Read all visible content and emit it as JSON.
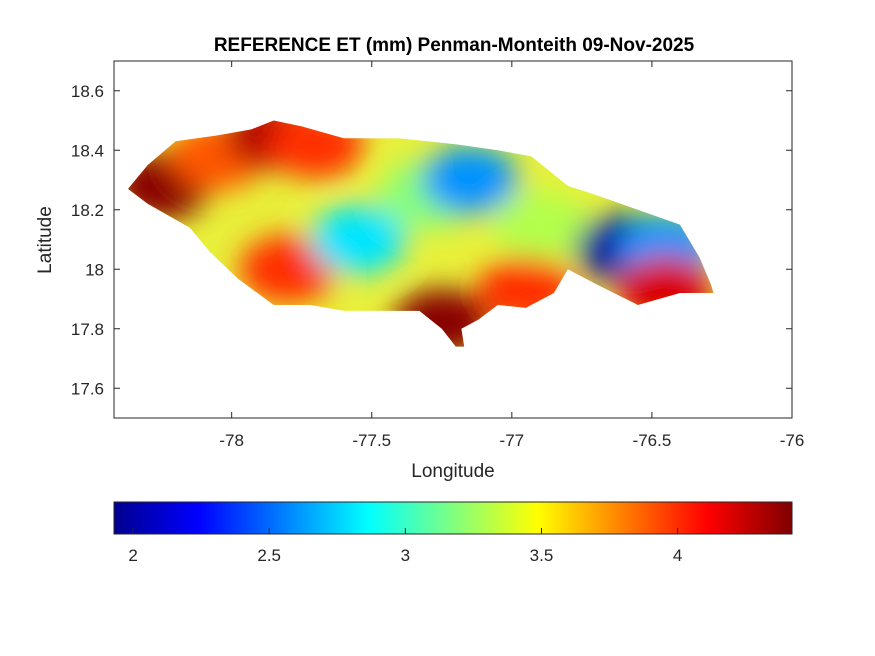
{
  "chart_data": {
    "type": "heatmap",
    "title": "REFERENCE ET (mm) Penman-Monteith 09-Nov-2025",
    "xlabel": "Longitude",
    "ylabel": "Latitude",
    "xlim": [
      -78.42,
      -76.0
    ],
    "ylim": [
      17.5,
      18.7
    ],
    "x_ticks": [
      -78,
      -77.5,
      -77,
      -76.5,
      -76
    ],
    "x_tick_labels": [
      "-78",
      "-77.5",
      "-77",
      "-76.5",
      "-76"
    ],
    "y_ticks": [
      17.6,
      17.8,
      18.0,
      18.2,
      18.4,
      18.6
    ],
    "y_tick_labels": [
      "17.6",
      "17.8",
      "18",
      "18.2",
      "18.4",
      "18.6"
    ],
    "grid": false,
    "colormap": "jet",
    "colorbar": {
      "orientation": "horizontal",
      "placement": "bottom",
      "range": [
        1.93,
        4.42
      ],
      "ticks": [
        2,
        2.5,
        3,
        3.5,
        4
      ],
      "tick_labels": [
        "2",
        "2.5",
        "3",
        "3.5",
        "4"
      ]
    },
    "region_outline": [
      [
        -78.37,
        18.27
      ],
      [
        -78.3,
        18.35
      ],
      [
        -78.2,
        18.43
      ],
      [
        -78.05,
        18.45
      ],
      [
        -77.93,
        18.47
      ],
      [
        -77.85,
        18.5
      ],
      [
        -77.75,
        18.48
      ],
      [
        -77.6,
        18.44
      ],
      [
        -77.4,
        18.44
      ],
      [
        -77.2,
        18.42
      ],
      [
        -77.05,
        18.4
      ],
      [
        -76.93,
        18.38
      ],
      [
        -76.8,
        18.28
      ],
      [
        -76.7,
        18.25
      ],
      [
        -76.55,
        18.2
      ],
      [
        -76.4,
        18.15
      ],
      [
        -76.33,
        18.04
      ],
      [
        -76.29,
        17.95
      ],
      [
        -76.28,
        17.92
      ],
      [
        -76.4,
        17.92
      ],
      [
        -76.55,
        17.88
      ],
      [
        -76.7,
        17.95
      ],
      [
        -76.8,
        18.0
      ],
      [
        -76.85,
        17.92
      ],
      [
        -76.95,
        17.87
      ],
      [
        -77.05,
        17.88
      ],
      [
        -77.12,
        17.83
      ],
      [
        -77.18,
        17.8
      ],
      [
        -77.17,
        17.74
      ],
      [
        -77.2,
        17.74
      ],
      [
        -77.25,
        17.8
      ],
      [
        -77.33,
        17.86
      ],
      [
        -77.45,
        17.86
      ],
      [
        -77.6,
        17.86
      ],
      [
        -77.72,
        17.88
      ],
      [
        -77.85,
        17.88
      ],
      [
        -77.98,
        17.97
      ],
      [
        -78.08,
        18.06
      ],
      [
        -78.15,
        18.14
      ],
      [
        -78.3,
        18.22
      ],
      [
        -78.37,
        18.27
      ]
    ],
    "value_blobs": [
      {
        "lon": -78.25,
        "lat": 18.28,
        "value": 4.4
      },
      {
        "lon": -78.05,
        "lat": 18.38,
        "value": 3.9
      },
      {
        "lon": -77.85,
        "lat": 18.45,
        "value": 4.3
      },
      {
        "lon": -77.7,
        "lat": 18.42,
        "value": 4.0
      },
      {
        "lon": -77.8,
        "lat": 18.0,
        "value": 4.0
      },
      {
        "lon": -77.55,
        "lat": 18.1,
        "value": 2.8
      },
      {
        "lon": -77.3,
        "lat": 18.25,
        "value": 3.2
      },
      {
        "lon": -77.15,
        "lat": 18.3,
        "value": 2.6
      },
      {
        "lon": -77.25,
        "lat": 17.82,
        "value": 4.4
      },
      {
        "lon": -76.95,
        "lat": 17.93,
        "value": 4.0
      },
      {
        "lon": -76.9,
        "lat": 18.15,
        "value": 3.3
      },
      {
        "lon": -76.6,
        "lat": 18.07,
        "value": 2.0
      },
      {
        "lon": -76.45,
        "lat": 18.07,
        "value": 2.6
      },
      {
        "lon": -76.45,
        "lat": 17.93,
        "value": 4.2
      }
    ]
  }
}
